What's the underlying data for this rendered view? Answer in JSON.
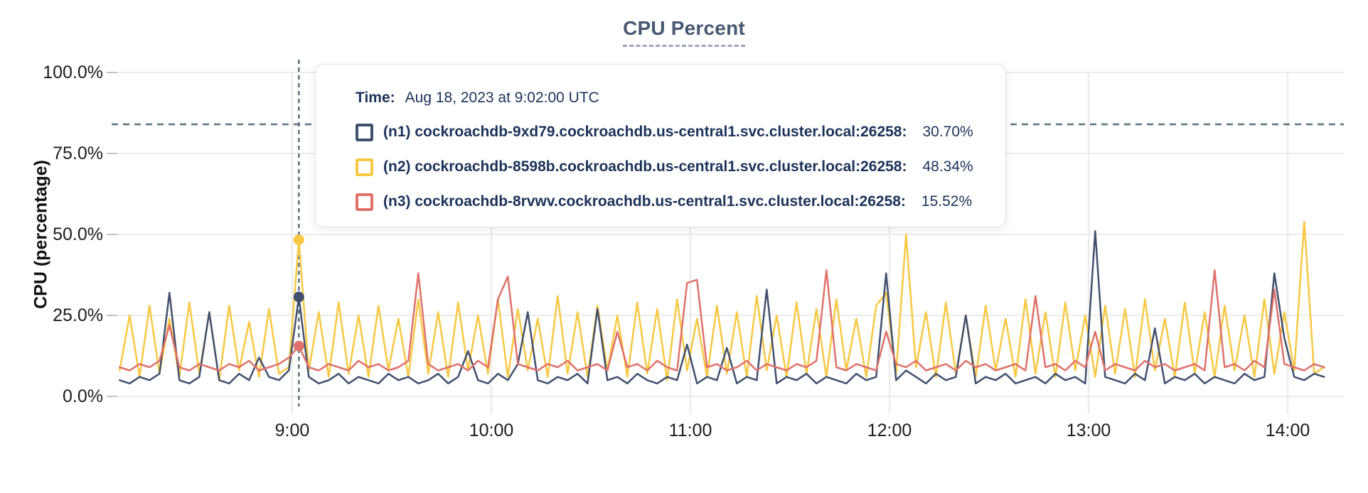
{
  "title": "CPU Percent",
  "tooltip": {
    "time_label": "Time:",
    "time_value": "Aug 18, 2023 at 9:02:00 UTC"
  },
  "chart_data": {
    "type": "line",
    "title": "CPU Percent",
    "xlabel": "",
    "ylabel": "CPU (percentage)",
    "ylim": [
      0,
      100
    ],
    "grid": true,
    "legend_position": "tooltip-overlay",
    "y_ticks": [
      {
        "label": "100.0%",
        "value": 100
      },
      {
        "label": "75.0%",
        "value": 75
      },
      {
        "label": "50.0%",
        "value": 50
      },
      {
        "label": "25.0%",
        "value": 25
      },
      {
        "label": "0.0%",
        "value": 0
      }
    ],
    "x_ticks": [
      {
        "label": "9:00",
        "minute": 540
      },
      {
        "label": "10:00",
        "minute": 600
      },
      {
        "label": "11:00",
        "minute": 660
      },
      {
        "label": "12:00",
        "minute": 720
      },
      {
        "label": "13:00",
        "minute": 780
      },
      {
        "label": "14:00",
        "minute": 840
      }
    ],
    "threshold_percent": 84,
    "x_start_min": 488,
    "x_step_min": 3,
    "hover": {
      "index": 18,
      "time_min": 542
    },
    "draw_order": [
      "n2",
      "n1",
      "n3"
    ],
    "series": [
      {
        "id": "n1",
        "name": "(n1) cockroachdb-9xd79.cockroachdb.us-central1.svc.cluster.local:26258:",
        "value_label": "30.70%",
        "color": "#41506e",
        "values": [
          5,
          4,
          6,
          5,
          7,
          32,
          5,
          4,
          6,
          26,
          5,
          4,
          7,
          5,
          12,
          6,
          5,
          8,
          30.7,
          6,
          4,
          5,
          7,
          4,
          6,
          5,
          4,
          7,
          5,
          6,
          4,
          5,
          7,
          4,
          6,
          14,
          5,
          4,
          7,
          5,
          10,
          26,
          5,
          4,
          6,
          5,
          7,
          4,
          27,
          5,
          6,
          4,
          7,
          5,
          4,
          6,
          5,
          16,
          4,
          6,
          5,
          15,
          4,
          6,
          5,
          33,
          4,
          6,
          5,
          7,
          4,
          6,
          5,
          4,
          7,
          5,
          6,
          38,
          5,
          8,
          6,
          4,
          7,
          5,
          6,
          25,
          4,
          6,
          5,
          7,
          4,
          5,
          6,
          4,
          7,
          5,
          6,
          4,
          51,
          6,
          5,
          4,
          7,
          5,
          21,
          4,
          6,
          5,
          7,
          4,
          6,
          5,
          4,
          7,
          5,
          6,
          38,
          18,
          6,
          5,
          7,
          6
        ]
      },
      {
        "id": "n2",
        "name": "(n2) cockroachdb-8598b.cockroachdb.us-central1.svc.cluster.local:26258:",
        "value_label": "48.34%",
        "color": "#f7c843",
        "values": [
          8,
          25,
          6,
          28,
          7,
          24,
          6,
          29,
          7,
          26,
          5,
          28,
          8,
          23,
          6,
          27,
          7,
          9,
          48.34,
          8,
          26,
          6,
          29,
          7,
          25,
          6,
          28,
          8,
          24,
          6,
          30,
          7,
          26,
          6,
          29,
          8,
          25,
          7,
          30,
          6,
          27,
          8,
          24,
          6,
          31,
          7,
          26,
          6,
          28,
          8,
          25,
          6,
          29,
          7,
          27,
          5,
          30,
          8,
          24,
          6,
          28,
          7,
          26,
          6,
          31,
          8,
          25,
          6,
          29,
          7,
          27,
          6,
          30,
          8,
          24,
          6,
          28,
          32,
          7,
          50,
          9,
          26,
          6,
          29,
          7,
          25,
          6,
          28,
          8,
          24,
          6,
          30,
          7,
          26,
          6,
          29,
          8,
          25,
          6,
          28,
          7,
          27,
          6,
          30,
          8,
          24,
          6,
          29,
          7,
          26,
          6,
          28,
          8,
          25,
          6,
          30,
          7,
          26,
          8,
          54,
          7,
          9
        ]
      },
      {
        "id": "n3",
        "name": "(n3) cockroachdb-8rvwv.cockroachdb.us-central1.svc.cluster.local:26258:",
        "value_label": "15.52%",
        "color": "#e0716b",
        "values": [
          9,
          8,
          10,
          9,
          11,
          22,
          9,
          8,
          10,
          9,
          8,
          10,
          9,
          11,
          8,
          9,
          10,
          12,
          15.52,
          9,
          8,
          10,
          9,
          8,
          11,
          9,
          10,
          8,
          9,
          11,
          38,
          10,
          8,
          9,
          10,
          8,
          11,
          9,
          30,
          37,
          10,
          9,
          8,
          10,
          9,
          11,
          8,
          9,
          10,
          8,
          20,
          9,
          10,
          8,
          11,
          9,
          8,
          35,
          36,
          9,
          10,
          8,
          9,
          11,
          8,
          10,
          9,
          8,
          10,
          9,
          11,
          39,
          9,
          8,
          10,
          9,
          8,
          20,
          10,
          9,
          11,
          8,
          9,
          10,
          8,
          11,
          9,
          10,
          8,
          9,
          10,
          8,
          31,
          9,
          10,
          8,
          11,
          9,
          20,
          8,
          10,
          9,
          8,
          11,
          9,
          10,
          8,
          9,
          10,
          8,
          39,
          9,
          10,
          8,
          11,
          9,
          33,
          10,
          9,
          8,
          10,
          9
        ]
      }
    ],
    "colors": {
      "grid": "#ececec",
      "tick": "#c3c3c3",
      "dashed_guides": "#5c7080",
      "title": "#475872",
      "tooltip_text": "#1b3259"
    }
  }
}
